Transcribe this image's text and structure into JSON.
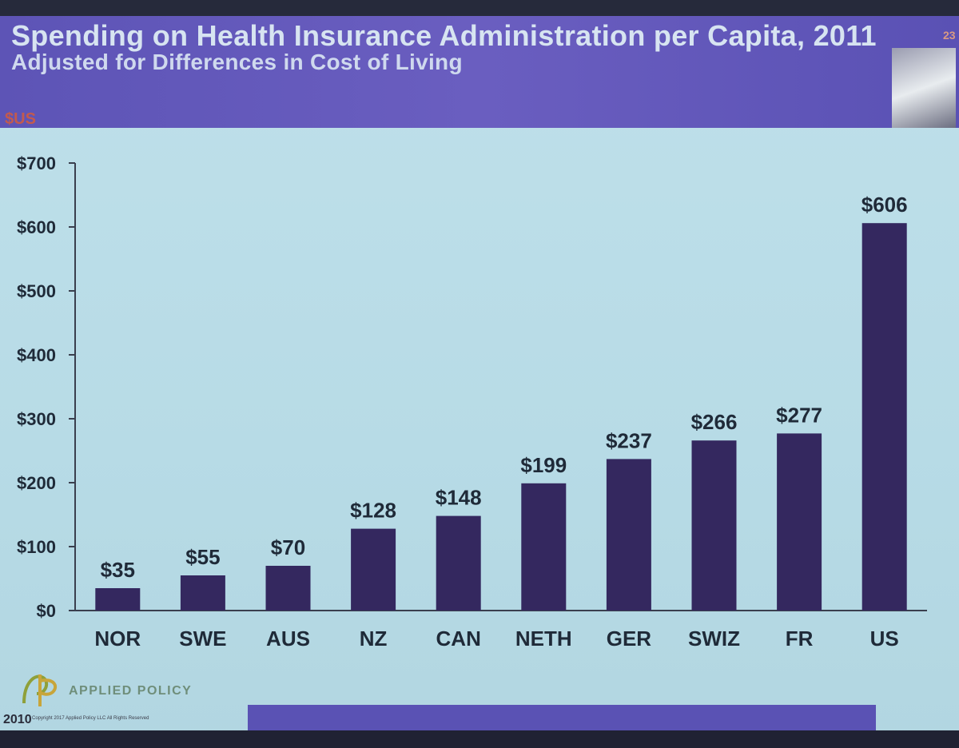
{
  "slide": {
    "title": "Spending on Health Insurance Administration per Capita, 2011",
    "subtitle": "Adjusted for Differences in Cost of Living",
    "slide_number": "23",
    "unit_label": "$US"
  },
  "footer": {
    "logo_text": "APPLIED POLICY",
    "year": "2010",
    "copyright": "Copyright 2017 Applied Policy LLC All Rights Reserved"
  },
  "colors": {
    "bar": "#34285f",
    "header": "#5d54b6",
    "background": "#bcdde8",
    "text": "#1f2a38"
  },
  "chart_data": {
    "type": "bar",
    "title": "Spending on Health Insurance Administration per Capita, 2011",
    "subtitle": "Adjusted for Differences in Cost of Living",
    "ylabel": "$US",
    "categories": [
      "NOR",
      "SWE",
      "AUS",
      "NZ",
      "CAN",
      "NETH",
      "GER",
      "SWIZ",
      "FR",
      "US"
    ],
    "values": [
      35,
      55,
      70,
      128,
      148,
      199,
      237,
      266,
      277,
      606
    ],
    "value_labels": [
      "$35",
      "$55",
      "$70",
      "$128",
      "$148",
      "$199",
      "$237",
      "$266",
      "$277",
      "$606"
    ],
    "ylim": [
      0,
      700
    ],
    "yticks": [
      0,
      100,
      200,
      300,
      400,
      500,
      600,
      700
    ],
    "ytick_labels": [
      "$0",
      "$100",
      "$200",
      "$300",
      "$400",
      "$500",
      "$600",
      "$700"
    ],
    "grid": false,
    "legend": "none"
  }
}
